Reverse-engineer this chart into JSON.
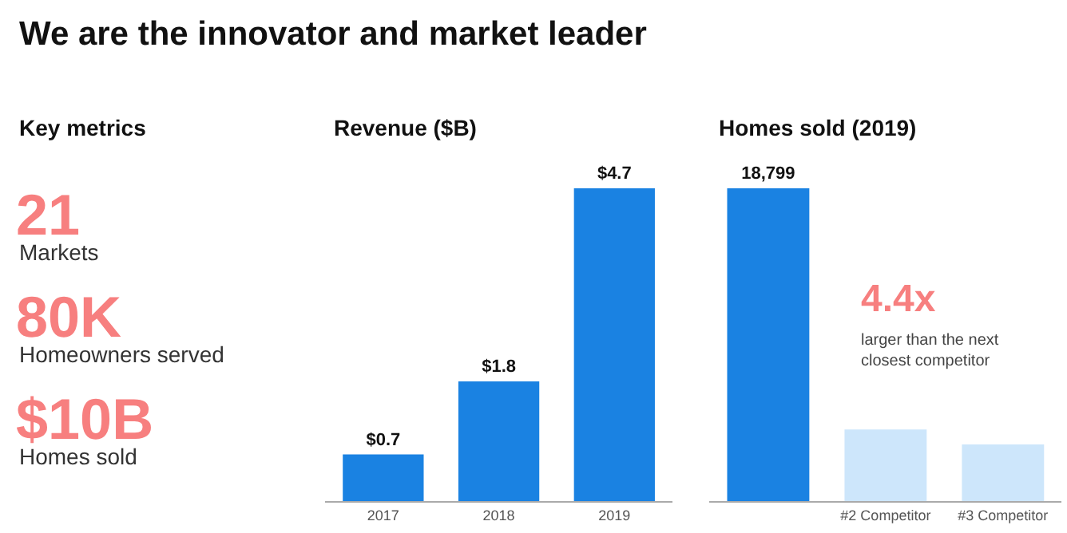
{
  "chart_data": [
    {
      "type": "other",
      "title": "We are the innovator and market leader",
      "subtitle": "Key metrics",
      "annotations": [
        "21",
        "Markets",
        "80K",
        "Homeowners served",
        "$10B",
        "Homes sold"
      ]
    },
    {
      "type": "bar",
      "title": "Revenue ($B)",
      "categories": [
        "2017",
        "2018",
        "2019"
      ],
      "values": [
        0.7,
        1.8,
        4.7
      ],
      "color": "#1a82e2",
      "value_labels": [
        "$0.7",
        "$1.8",
        "$4.7"
      ]
    },
    {
      "type": "bar",
      "title": "Homes sold (2019)",
      "categories": [
        null,
        "#2 Competitor",
        "#3 Competitor"
      ],
      "values": [
        18799,
        4300,
        3400
      ],
      "colors": [
        "#1a82e2",
        "#cde6fb",
        "#cde6fb"
      ],
      "value_labels": [
        "18,799",
        null,
        null
      ],
      "annotations": [
        "4.4x",
        "larger than the next closest competitor"
      ]
    }
  ]
}
